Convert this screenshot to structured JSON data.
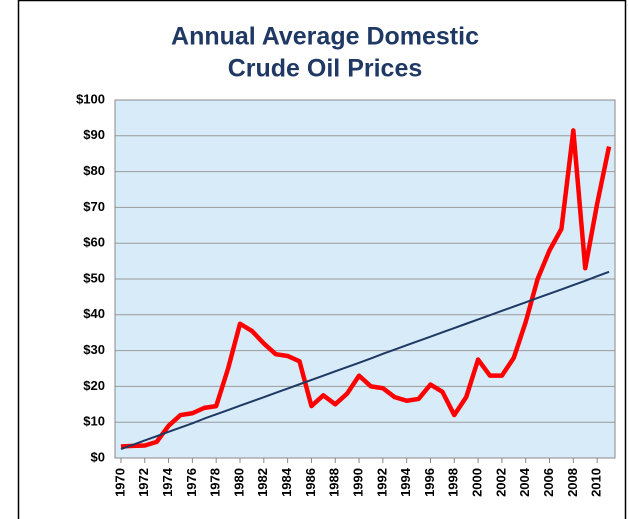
{
  "chart_data": {
    "type": "line",
    "title": [
      "Annual Average Domestic",
      "Crude Oil Prices"
    ],
    "x": [
      1970,
      1971,
      1972,
      1973,
      1974,
      1975,
      1976,
      1977,
      1978,
      1979,
      1980,
      1981,
      1982,
      1983,
      1984,
      1985,
      1986,
      1987,
      1988,
      1989,
      1990,
      1991,
      1992,
      1993,
      1994,
      1995,
      1996,
      1997,
      1998,
      1999,
      2000,
      2001,
      2002,
      2003,
      2004,
      2005,
      2006,
      2007,
      2008,
      2009,
      2010,
      2011
    ],
    "series": [
      {
        "color": "#ff0000",
        "values": [
          3.2,
          3.4,
          3.5,
          4.5,
          9,
          12,
          12.5,
          14,
          14.5,
          25,
          37.5,
          35.5,
          32,
          29,
          28.5,
          27,
          14.5,
          17.5,
          15,
          18,
          23,
          20,
          19.5,
          17,
          16,
          16.5,
          20.5,
          18.5,
          12,
          17,
          27.5,
          23,
          23,
          28,
          38,
          50,
          58,
          64,
          91.5,
          53,
          71,
          87
        ]
      },
      {
        "color": "#1f3864",
        "values": [
          2.5,
          3.7,
          4.9,
          6.1,
          7.3,
          8.5,
          9.7,
          11.0,
          12.2,
          13.4,
          14.6,
          15.8,
          17.0,
          18.2,
          19.4,
          20.6,
          21.8,
          23.0,
          24.2,
          25.4,
          26.6,
          27.8,
          29.1,
          30.3,
          31.5,
          32.7,
          33.9,
          35.1,
          36.3,
          37.5,
          38.7,
          39.9,
          41.1,
          42.3,
          43.5,
          44.7,
          45.9,
          47.1,
          48.3,
          49.5,
          50.8,
          52.0
        ]
      }
    ],
    "xlim": [
      1969.5,
      2011.5
    ],
    "xticks": [
      1970,
      1972,
      1974,
      1976,
      1978,
      1980,
      1982,
      1984,
      1986,
      1988,
      1990,
      1992,
      1994,
      1996,
      1998,
      2000,
      2002,
      2004,
      2006,
      2008,
      2010
    ],
    "ylim": [
      0,
      100
    ],
    "yticks": [
      {
        "value": 0,
        "label": "$0"
      },
      {
        "value": 10,
        "label": "$10"
      },
      {
        "value": 20,
        "label": "$20"
      },
      {
        "value": 30,
        "label": "$30"
      },
      {
        "value": 40,
        "label": "$40"
      },
      {
        "value": 50,
        "label": "$50"
      },
      {
        "value": 60,
        "label": "$60"
      },
      {
        "value": 70,
        "label": "$70"
      },
      {
        "value": 80,
        "label": "$80"
      },
      {
        "value": 90,
        "label": "$90"
      },
      {
        "value": 100,
        "label": "$100"
      }
    ],
    "grid": true,
    "plot_background": "#d7ecf8"
  }
}
